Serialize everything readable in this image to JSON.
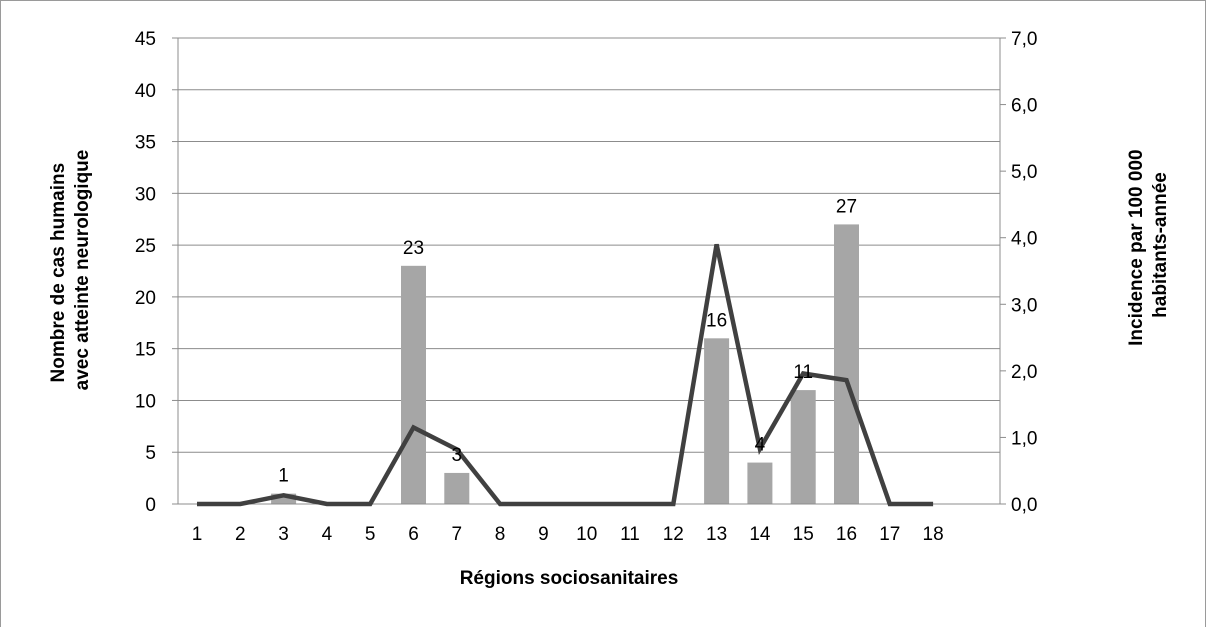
{
  "chart_data": {
    "type": "bar",
    "title": "",
    "xlabel": "Régions sociosanitaires",
    "ylabel_left": [
      "Nombre de cas humains",
      "avec atteinte neurologique"
    ],
    "ylabel_right": [
      "Incidence par 100 000",
      "habitants-année"
    ],
    "categories": [
      "1",
      "2",
      "3",
      "4",
      "5",
      "6",
      "7",
      "8",
      "9",
      "10",
      "11",
      "12",
      "13",
      "14",
      "15",
      "16",
      "17",
      "18"
    ],
    "ylim_left": [
      0,
      45
    ],
    "yticks_left": [
      "0",
      "5",
      "10",
      "15",
      "20",
      "25",
      "30",
      "35",
      "40",
      "45"
    ],
    "ylim_right": [
      0,
      7
    ],
    "yticks_right": [
      "0,0",
      "1,0",
      "2,0",
      "3,0",
      "4,0",
      "5,0",
      "6,0",
      "7,0"
    ],
    "grid": true,
    "series": [
      {
        "type": "bar",
        "axis": "left",
        "values": [
          0,
          0,
          1,
          0,
          0,
          23,
          3,
          0,
          0,
          0,
          0,
          0,
          16,
          4,
          11,
          27,
          0,
          0
        ],
        "labels": [
          "",
          "",
          "1",
          "",
          "",
          "23",
          "3",
          "",
          "",
          "",
          "",
          "",
          "16",
          "4",
          "11",
          "27",
          "",
          ""
        ]
      },
      {
        "type": "line",
        "axis": "right",
        "values": [
          0,
          0,
          0.13,
          0,
          0,
          1.15,
          0.82,
          0,
          0,
          0,
          0,
          0,
          3.9,
          0.83,
          1.96,
          1.86,
          0,
          0
        ]
      }
    ],
    "colors": {
      "bar": "#a6a6a6",
      "line": "#404040",
      "grid": "#8c8c8c",
      "axis": "#8c8c8c"
    }
  }
}
